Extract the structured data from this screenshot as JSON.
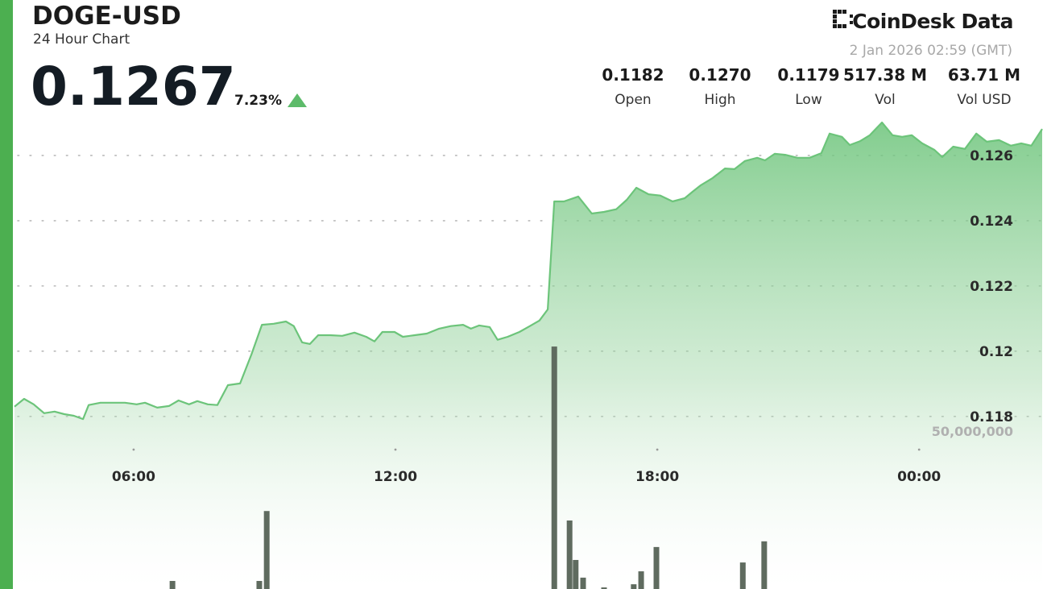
{
  "chart_data": {
    "type": "area",
    "title": "DOGE-USD",
    "subtitle": "24 Hour Chart",
    "price": "0.1267",
    "change": "7.23%",
    "brand": "CoinDesk Data",
    "timestamp": "2 Jan 2026 02:59 (GMT)",
    "stats": [
      {
        "value": "0.1182",
        "label": "Open"
      },
      {
        "value": "0.1270",
        "label": "High"
      },
      {
        "value": "0.1179",
        "label": "Low"
      },
      {
        "value": "517.38 M",
        "label": "Vol"
      },
      {
        "value": "63.71 M",
        "label": "Vol USD"
      }
    ],
    "xlim": [
      3.27,
      26.82
    ],
    "xticks": [
      {
        "value": 6,
        "label": "06:00"
      },
      {
        "value": 12,
        "label": "12:00"
      },
      {
        "value": 18,
        "label": "18:00"
      },
      {
        "value": 24,
        "label": "00:00"
      }
    ],
    "ylim": [
      0.11765,
      0.12706
    ],
    "yticks": [
      {
        "value": 0.126,
        "label": "0.126"
      },
      {
        "value": 0.124,
        "label": "0.124"
      },
      {
        "value": 0.122,
        "label": "0.122"
      },
      {
        "value": 0.12,
        "label": "0.12"
      },
      {
        "value": 0.118,
        "label": "0.118"
      }
    ],
    "y2lim": [
      0,
      110000000
    ],
    "y2ticks": [
      {
        "value": 50000000,
        "label": "50,000,000"
      }
    ],
    "grid": true,
    "series": [
      {
        "type": "area",
        "color": "#6cc47a",
        "x": [
          3.27,
          3.49,
          3.71,
          3.95,
          4.19,
          4.41,
          4.63,
          4.84,
          4.97,
          5.24,
          5.52,
          5.8,
          6.07,
          6.26,
          6.54,
          6.81,
          7.03,
          7.27,
          7.46,
          7.7,
          7.92,
          8.16,
          8.44,
          8.7,
          8.94,
          9.21,
          9.49,
          9.67,
          9.86,
          10.04,
          10.23,
          10.5,
          10.78,
          11.06,
          11.33,
          11.52,
          11.7,
          11.98,
          12.17,
          12.44,
          12.72,
          13.0,
          13.27,
          13.55,
          13.73,
          13.92,
          14.16,
          14.34,
          14.57,
          14.84,
          15.08,
          15.3,
          15.49,
          15.64,
          15.86,
          16.19,
          16.5,
          16.78,
          17.06,
          17.3,
          17.52,
          17.8,
          18.07,
          18.35,
          18.63,
          18.81,
          19.0,
          19.27,
          19.55,
          19.77,
          20.01,
          20.29,
          20.47,
          20.69,
          20.93,
          21.21,
          21.49,
          21.76,
          21.95,
          22.23,
          22.41,
          22.65,
          22.87,
          23.15,
          23.39,
          23.61,
          23.83,
          24.07,
          24.35,
          24.53,
          24.78,
          25.05,
          25.31,
          25.55,
          25.83,
          26.1,
          26.34,
          26.57,
          26.82
        ],
        "values": [
          0.1183,
          0.11854,
          0.11837,
          0.1181,
          0.11815,
          0.11807,
          0.11802,
          0.11792,
          0.11835,
          0.11842,
          0.11842,
          0.11842,
          0.11837,
          0.11842,
          0.11827,
          0.11832,
          0.11849,
          0.11837,
          0.11847,
          0.11837,
          0.11835,
          0.11896,
          0.11901,
          0.1199,
          0.12081,
          0.12084,
          0.12091,
          0.12077,
          0.12027,
          0.12022,
          0.12049,
          0.12049,
          0.12047,
          0.12057,
          0.12044,
          0.1203,
          0.12059,
          0.12059,
          0.12044,
          0.12049,
          0.12054,
          0.12069,
          0.12077,
          0.12081,
          0.12069,
          0.12079,
          0.12074,
          0.12035,
          0.12044,
          0.12059,
          0.12077,
          0.12094,
          0.12128,
          0.12459,
          0.12459,
          0.12474,
          0.12422,
          0.12427,
          0.12435,
          0.12464,
          0.12501,
          0.12481,
          0.12477,
          0.12459,
          0.12469,
          0.12489,
          0.12509,
          0.12531,
          0.1256,
          0.12558,
          0.12583,
          0.12593,
          0.12585,
          0.12605,
          0.12602,
          0.12593,
          0.12593,
          0.12607,
          0.12667,
          0.12657,
          0.12632,
          0.12644,
          0.12662,
          0.12701,
          0.12662,
          0.12657,
          0.12662,
          0.12637,
          0.12617,
          0.12595,
          0.12627,
          0.1262,
          0.12667,
          0.12642,
          0.12647,
          0.1263,
          0.12637,
          0.1263,
          0.12681
        ]
      },
      {
        "type": "bar",
        "axis": "y2",
        "color": "#5f6b5f",
        "x": [
          6.89,
          8.88,
          9.05,
          15.64,
          15.99,
          16.13,
          16.3,
          16.78,
          17.46,
          17.63,
          17.98,
          19.96,
          20.45
        ],
        "values": [
          2550000,
          2550000,
          24700000,
          76800000,
          21700000,
          9200000,
          3600000,
          500000,
          1500000,
          5600000,
          13300000,
          8400000,
          15100000
        ]
      }
    ]
  }
}
